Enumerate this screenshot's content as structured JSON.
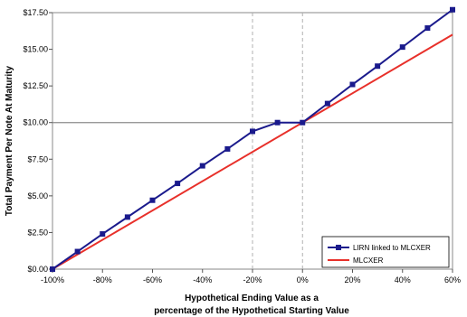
{
  "chart_data": {
    "type": "line",
    "title": "",
    "xlabel_lines": [
      "Hypothetical Ending Value as a",
      "percentage of the Hypothetical Starting Value"
    ],
    "ylabel": "Total Payment Per Note At Maturity",
    "x_ticks": [
      "-100%",
      "-80%",
      "-60%",
      "-40%",
      "-20%",
      "0%",
      "20%",
      "40%",
      "60%"
    ],
    "y_ticks": [
      "$0.00",
      "$2.50",
      "$5.00",
      "$7.50",
      "$10.00",
      "$12.50",
      "$15.00",
      "$17.50"
    ],
    "xlim": [
      -100,
      60
    ],
    "ylim": [
      0,
      17.5
    ],
    "grid": false,
    "reference_lines": {
      "vertical_dashed_x": [
        -20,
        0
      ],
      "horizontal_y": 10
    },
    "legend_position": "bottom-right",
    "series": [
      {
        "name": "LIRN linked to MLCXER",
        "color": "#1a1a8c",
        "marker": "square",
        "x": [
          -100,
          -90,
          -80,
          -70,
          -60,
          -50,
          -40,
          -30,
          -20,
          -10,
          0,
          10,
          20,
          30,
          40,
          50,
          60
        ],
        "y": [
          0.0,
          1.2,
          2.4,
          3.55,
          4.7,
          5.85,
          7.05,
          8.2,
          9.4,
          10.0,
          10.0,
          11.3,
          12.6,
          13.85,
          15.15,
          16.45,
          17.7
        ]
      },
      {
        "name": "MLCXER",
        "color": "#e8302a",
        "marker": "none",
        "x": [
          -100,
          60
        ],
        "y": [
          0.0,
          16.0
        ]
      }
    ]
  }
}
